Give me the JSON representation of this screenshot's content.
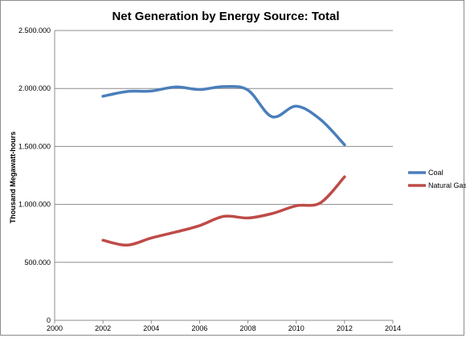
{
  "chart_data": {
    "type": "line",
    "title": "Net Generation by Energy Source:  Total",
    "xlabel": "",
    "ylabel": "Thousand Megawatt-hours",
    "xlim": [
      2000,
      2014
    ],
    "ylim": [
      0,
      2500000
    ],
    "x_ticks": [
      2000,
      2002,
      2004,
      2006,
      2008,
      2010,
      2012,
      2014
    ],
    "x_tick_labels": [
      "2000",
      "2002",
      "2004",
      "2006",
      "2008",
      "2010",
      "2012",
      "2014"
    ],
    "y_ticks": [
      0,
      500000,
      1000000,
      1500000,
      2000000,
      2500000
    ],
    "y_tick_labels": [
      "0",
      "500.000",
      "1.000.000",
      "1.500.000",
      "2.000.000",
      "2.500.000"
    ],
    "grid": "horizontal",
    "legend_position": "right",
    "x": [
      2002,
      2003,
      2004,
      2005,
      2006,
      2007,
      2008,
      2009,
      2010,
      2011,
      2012
    ],
    "series": [
      {
        "name": "Coal",
        "color": "#4a7ebb",
        "values": [
          1933000,
          1974000,
          1978000,
          2013000,
          1991000,
          2016000,
          1986000,
          1756000,
          1847000,
          1733000,
          1514000
        ]
      },
      {
        "name": "Natural Gas",
        "color": "#be4b48",
        "values": [
          691000,
          649000,
          710000,
          761000,
          817000,
          897000,
          883000,
          921000,
          988000,
          1014000,
          1238000
        ]
      }
    ]
  }
}
